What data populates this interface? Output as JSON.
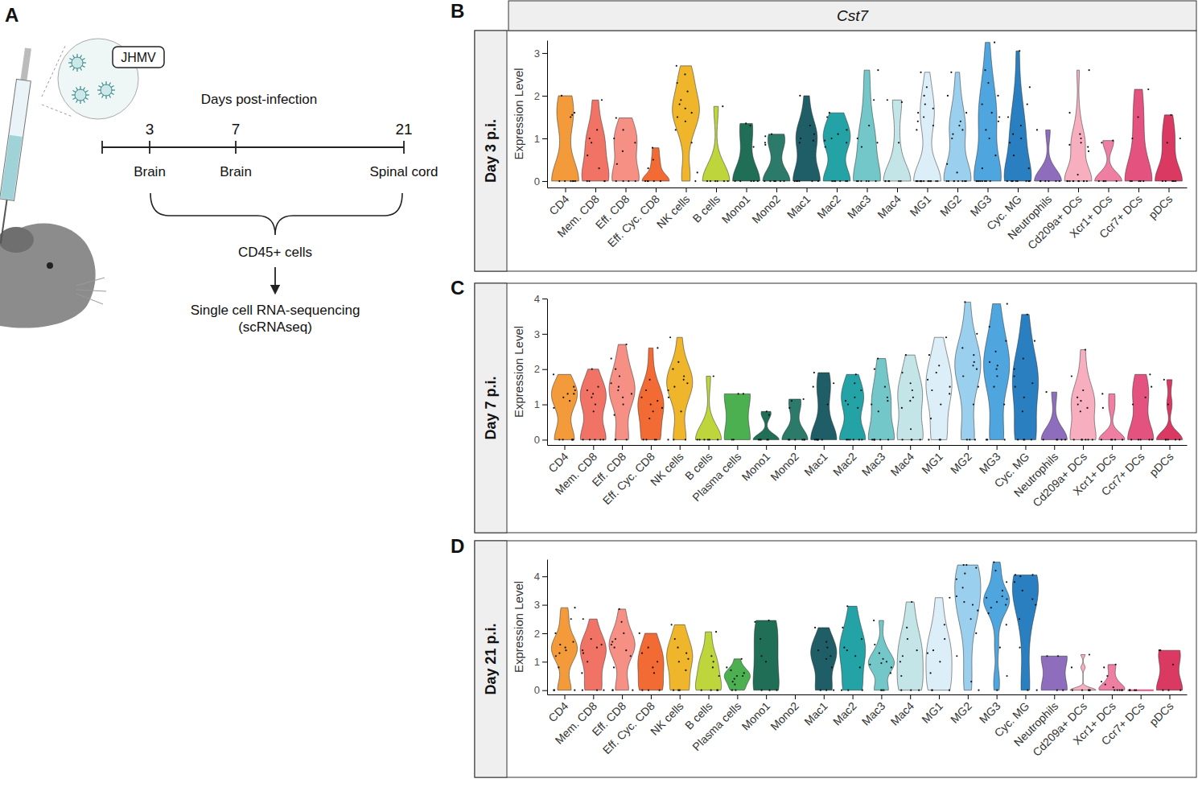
{
  "diagram": {
    "label": "A",
    "virus": "JHMV",
    "timeline_title": "Days post-infection",
    "timepoints": [
      {
        "day": 3,
        "tissue": "Brain"
      },
      {
        "day": 7,
        "tissue": "Brain"
      },
      {
        "day": 21,
        "tissue": "Spinal cord"
      }
    ],
    "cells": "CD45+ cells",
    "method": [
      "Single cell RNA-sequencing",
      "(scRNAseq)"
    ]
  },
  "chart_data": [
    {
      "type": "violin",
      "label": "B",
      "title": "Cst7",
      "subtitle": "Day 3 p.i.",
      "ylabel": "Expression Level",
      "categories": [
        "CD4",
        "Mem. CD8",
        "Eff. CD8",
        "Eff. Cyc. CD8",
        "NK cells",
        "B cells",
        "Mono1",
        "Mono2",
        "Mac1",
        "Mac2",
        "Mac3",
        "Mac4",
        "MG1",
        "MG2",
        "MG3",
        "Cyc. MG",
        "Neutrophils",
        "Cd209a+ DCs",
        "Xcr1+ DCs",
        "Ccr7+ DCs",
        "pDCs"
      ],
      "colors": [
        "#F39A3B",
        "#F07366",
        "#F68F84",
        "#F26B35",
        "#EFB52B",
        "#BED53C",
        "#1F6E55",
        "#2B7A6A",
        "#1F5E66",
        "#23A3A6",
        "#74C7C9",
        "#C3E5E8",
        "#DCEFF8",
        "#9ACFEE",
        "#4FA6DF",
        "#2A7FC1",
        "#8E6DBD",
        "#F7AFC0",
        "#EE7FA3",
        "#E4537F",
        "#DA3A62"
      ],
      "values": [
        [
          0,
          0,
          0,
          0,
          0,
          0,
          1.6,
          2.0,
          1.5,
          1.55
        ],
        [
          0,
          0,
          0,
          0,
          0.3,
          0.6,
          0.9,
          1.2,
          1.9,
          1.0
        ],
        [
          0,
          0,
          0,
          0,
          0.4,
          0.7,
          1.0,
          1.48,
          1.2,
          0.9
        ],
        [
          0,
          0,
          0,
          0,
          0,
          0.3,
          0.78,
          0.5
        ],
        [
          0,
          0.2,
          0.9,
          1.2,
          1.4,
          1.5,
          1.7,
          1.9,
          2.1,
          2.3,
          2.5,
          2.7,
          1.6,
          1.8
        ],
        [
          0,
          0,
          0,
          0,
          0,
          0,
          1.75
        ],
        [
          0,
          0,
          0,
          0,
          0,
          0.8,
          1.3,
          1.35
        ],
        [
          0,
          0,
          0,
          0,
          0,
          0,
          0.9,
          1.1,
          0.85,
          1.05
        ],
        [
          0,
          0,
          0,
          0,
          0,
          0,
          0.9,
          1.0,
          1.1,
          1.3,
          2.0,
          0.95
        ],
        [
          0,
          0,
          0,
          0,
          0,
          0,
          0.8,
          0.9,
          1.0,
          1.1,
          1.2,
          1.5,
          1.6,
          0.95
        ],
        [
          0,
          0,
          0,
          0,
          0,
          0,
          0.8,
          1.0,
          1.3,
          1.9,
          2.6,
          0.9
        ],
        [
          0,
          0,
          0,
          0,
          0,
          0,
          0.9,
          1.85,
          1.9
        ],
        [
          0,
          0,
          0,
          0,
          0,
          0,
          0,
          0,
          0,
          0,
          0,
          0,
          0,
          0,
          1.2,
          1.4,
          1.5,
          1.6,
          1.8,
          2.0,
          2.2,
          2.55,
          1.3,
          1.7
        ],
        [
          0,
          0,
          0,
          0,
          0,
          0,
          0,
          0,
          0.2,
          0.4,
          1.0,
          1.2,
          1.3,
          1.4,
          1.6,
          2.0,
          2.55,
          1.1
        ],
        [
          0,
          0,
          0,
          0,
          0,
          0,
          0,
          0,
          0.3,
          0.6,
          1.0,
          1.2,
          1.4,
          1.6,
          1.8,
          2.0,
          2.3,
          2.6,
          3.25,
          1.5
        ],
        [
          0,
          0,
          0,
          0,
          0,
          0,
          0,
          0,
          0.3,
          0.6,
          0.9,
          1.1,
          1.3,
          1.5,
          1.8,
          2.2,
          3.05,
          1.0
        ],
        [
          0,
          0,
          0,
          0,
          0,
          0,
          1.2
        ],
        [
          0,
          0,
          0,
          0,
          0,
          0,
          0,
          0,
          0,
          0,
          0.15,
          0.7,
          0.8,
          0.9,
          1.0,
          1.1,
          1.6,
          2.6,
          0.85
        ],
        [
          0,
          0,
          0,
          0,
          0,
          0.95,
          0.9
        ],
        [
          0,
          0,
          0,
          0,
          0,
          2.15,
          1.0,
          1.5
        ],
        [
          0,
          0,
          0,
          0,
          0,
          1.55,
          1.0,
          0.9
        ]
      ],
      "ylim": [
        -0.15,
        3.3
      ],
      "yticks": [
        0,
        1,
        2,
        3
      ]
    },
    {
      "type": "violin",
      "label": "C",
      "subtitle": "Day 7 p.i.",
      "ylabel": "Expression Level",
      "categories": [
        "CD4",
        "Mem. CD8",
        "Eff. CD8",
        "Eff. Cyc. CD8",
        "NK cells",
        "B cells",
        "Plasma cells",
        "Mono1",
        "Mono2",
        "Mac1",
        "Mac2",
        "Mac3",
        "Mac4",
        "MG1",
        "MG2",
        "MG3",
        "Cyc. MG",
        "Neutrophils",
        "Cd209a+ DCs",
        "Xcr1+ DCs",
        "Ccr7+ DCs",
        "pDCs"
      ],
      "colors": [
        "#F39A3B",
        "#F07366",
        "#F68F84",
        "#F26B35",
        "#EFB52B",
        "#BED53C",
        "#4CAF50",
        "#1F6E55",
        "#2B7A6A",
        "#1F5E66",
        "#23A3A6",
        "#74C7C9",
        "#C3E5E8",
        "#DCEFF8",
        "#9ACFEE",
        "#4FA6DF",
        "#2A7FC1",
        "#8E6DBD",
        "#F7AFC0",
        "#EE7FA3",
        "#E4537F",
        "#DA3A62"
      ],
      "values": [
        [
          0,
          0,
          0,
          0,
          0,
          0.9,
          1.1,
          1.2,
          1.3,
          1.4,
          1.5,
          1.85,
          1.3
        ],
        [
          0,
          0,
          0,
          0,
          0,
          0.8,
          1.0,
          1.2,
          1.3,
          1.5,
          2.0,
          1.4
        ],
        [
          0,
          0,
          0,
          0.7,
          1.0,
          1.2,
          1.4,
          1.5,
          1.6,
          1.8,
          2.0,
          2.3,
          2.7,
          1.3
        ],
        [
          0,
          0,
          0,
          0,
          0.6,
          0.8,
          1.0,
          1.1,
          1.2,
          1.4,
          1.7,
          2.6,
          0.9
        ],
        [
          0,
          0,
          0,
          0.8,
          1.2,
          1.4,
          1.6,
          1.8,
          2.0,
          2.2,
          2.9,
          1.7,
          1.5
        ],
        [
          0,
          0,
          0,
          0,
          0,
          0,
          1.8
        ],
        [
          0,
          0,
          1.3,
          1.3
        ],
        [
          0,
          0,
          0,
          0,
          0,
          0.8,
          0.7
        ],
        [
          0,
          0,
          0,
          0,
          0,
          0,
          1.1,
          1.15,
          0.9
        ],
        [
          0,
          0,
          0,
          0,
          0,
          0,
          1.0,
          1.5,
          1.6,
          1.9
        ],
        [
          0,
          0,
          0,
          0,
          0,
          0,
          0.9,
          1.0,
          1.1,
          1.2,
          1.4,
          1.6,
          1.85
        ],
        [
          0,
          0,
          0,
          0,
          0,
          0,
          0.8,
          1.0,
          1.2,
          1.5,
          2.0,
          2.3,
          1.1
        ],
        [
          0,
          0,
          0,
          0,
          0.3,
          0.9,
          1.2,
          1.4,
          1.6,
          1.9,
          2.4,
          1.1
        ],
        [
          0,
          0,
          0,
          0.6,
          1.0,
          1.3,
          1.5,
          1.7,
          1.9,
          2.1,
          2.4,
          2.9,
          1.4
        ],
        [
          0,
          0,
          0,
          1.0,
          1.5,
          1.8,
          2.0,
          2.2,
          2.4,
          2.6,
          3.0,
          3.9,
          2.1
        ],
        [
          0,
          0,
          0,
          1.0,
          1.5,
          1.8,
          2.0,
          2.2,
          2.5,
          2.8,
          3.2,
          3.85,
          2.1
        ],
        [
          0,
          0,
          0,
          0,
          0.8,
          1.2,
          1.5,
          1.8,
          2.0,
          2.3,
          2.8,
          3.55,
          1.6
        ],
        [
          0,
          0,
          0,
          0,
          0,
          1.35
        ],
        [
          0,
          0,
          0,
          0,
          0,
          0,
          0.8,
          1.0,
          1.1,
          1.2,
          1.4,
          1.8,
          2.55,
          0.9
        ],
        [
          0,
          0,
          0,
          0,
          0,
          1.3,
          0.9
        ],
        [
          0,
          0,
          0,
          0,
          0,
          1.85,
          1.2,
          1.5,
          1.0
        ],
        [
          0,
          0,
          0,
          0,
          0,
          1.7,
          1.0
        ]
      ],
      "ylim": [
        -0.15,
        4
      ],
      "yticks": [
        0,
        1,
        2,
        3,
        4
      ]
    },
    {
      "type": "violin",
      "label": "D",
      "subtitle": "Day 21 p.i.",
      "ylabel": "Expression Level",
      "categories": [
        "CD4",
        "Mem. CD8",
        "Eff. CD8",
        "Eff. Cyc. CD8",
        "NK cells",
        "B cells",
        "Plasma cells",
        "Mono1",
        "Mono2",
        "Mac1",
        "Mac2",
        "Mac3",
        "Mac4",
        "MG1",
        "MG2",
        "MG3",
        "Cyc. MG",
        "Neutrophils",
        "Cd209a+ DCs",
        "Xcr1+ DCs",
        "Ccr7+ DCs",
        "pDCs"
      ],
      "colors": [
        "#F39A3B",
        "#F07366",
        "#F68F84",
        "#F26B35",
        "#EFB52B",
        "#BED53C",
        "#4CAF50",
        "#1F6E55",
        "#2B7A6A",
        "#1F5E66",
        "#23A3A6",
        "#74C7C9",
        "#C3E5E8",
        "#DCEFF8",
        "#9ACFEE",
        "#4FA6DF",
        "#2A7FC1",
        "#8E6DBD",
        "#F7AFC0",
        "#EE7FA3",
        "#E4537F",
        "#DA3A62"
      ],
      "values": [
        [
          0,
          0,
          0,
          0.8,
          1.2,
          1.4,
          1.5,
          1.6,
          1.7,
          2.0,
          2.5,
          2.9,
          1.3
        ],
        [
          0,
          0,
          0,
          0.6,
          1.0,
          1.3,
          1.5,
          1.6,
          1.8,
          2.5,
          1.4
        ],
        [
          0,
          0,
          0,
          0.8,
          1.2,
          1.4,
          1.6,
          1.7,
          1.8,
          2.0,
          2.4,
          2.85,
          1.5
        ],
        [
          0,
          0,
          0,
          0.6,
          1.0,
          1.3,
          1.5,
          2.0,
          0.8
        ],
        [
          0,
          0,
          0,
          0.7,
          1.0,
          1.3,
          1.5,
          1.8,
          2.3,
          1.1
        ],
        [
          0,
          0,
          0,
          0,
          0.5,
          0.8,
          1.0,
          1.2,
          2.05
        ],
        [
          0,
          0,
          0.2,
          0.3,
          0.4,
          0.5,
          0.5,
          0.6,
          0.7,
          0.8,
          1.1
        ],
        [
          0,
          0,
          0,
          1.2,
          1.8,
          2.45,
          2.4,
          1.0
        ],
        [],
        [
          0,
          0,
          0,
          0.8,
          1.2,
          1.4,
          1.5,
          1.7,
          2.2,
          1.1
        ],
        [
          0,
          0,
          0,
          0.8,
          1.2,
          1.5,
          1.8,
          2.2,
          2.95,
          1.4
        ],
        [
          0,
          0,
          0,
          0.6,
          0.8,
          0.9,
          1.0,
          1.1,
          1.3,
          1.6,
          2.45,
          0.95
        ],
        [
          0,
          0,
          0,
          0.5,
          1.0,
          1.4,
          1.8,
          2.2,
          3.1,
          1.2
        ],
        [
          0,
          0,
          0,
          0.6,
          1.0,
          1.4,
          1.8,
          2.3,
          3.25,
          1.3
        ],
        [
          0,
          0.3,
          1.2,
          2.0,
          2.5,
          2.8,
          3.0,
          3.3,
          3.6,
          3.9,
          4.1,
          4.3,
          4.4,
          4.4,
          3.1
        ],
        [
          0,
          0.5,
          1.5,
          2.3,
          2.7,
          2.9,
          3.0,
          3.1,
          3.2,
          3.3,
          3.5,
          3.8,
          4.2,
          4.5,
          3.25
        ],
        [
          0,
          0,
          1.5,
          2.5,
          3.0,
          3.2,
          3.5,
          3.8,
          4.0,
          4.05,
          4.05
        ],
        [
          0,
          0,
          1.2,
          1.2
        ],
        [
          0,
          0,
          0,
          0,
          0,
          0,
          0.8,
          1.25
        ],
        [
          0,
          0,
          0,
          0,
          0,
          0.1,
          0.3,
          0.5,
          0.8,
          0.9,
          0.2
        ],
        [
          0,
          0,
          0,
          0,
          0
        ],
        [
          0,
          0,
          0,
          1.4,
          1.4,
          0.9
        ]
      ],
      "ylim": [
        -0.15,
        4.6
      ],
      "yticks": [
        0,
        1,
        2,
        3,
        4
      ]
    }
  ]
}
